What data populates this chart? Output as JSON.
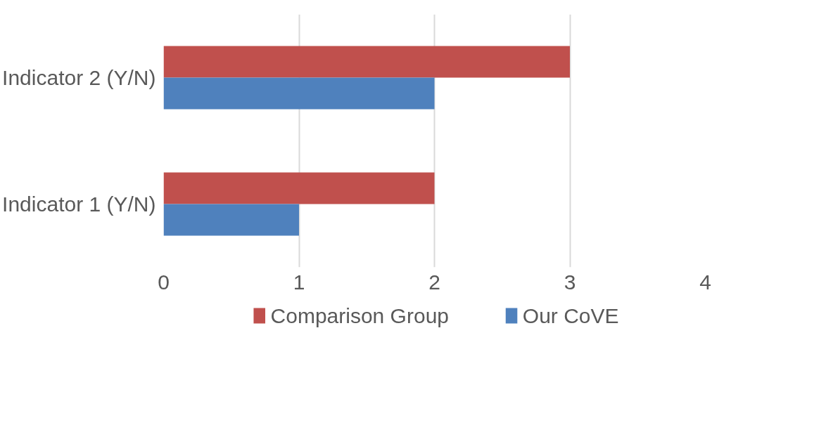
{
  "chart_data": {
    "type": "bar",
    "orientation": "horizontal",
    "categories": [
      "Indicator 2 (Y/N)",
      "Indicator 1 (Y/N)"
    ],
    "series": [
      {
        "name": "Comparison Group",
        "color": "#c0504d",
        "values": [
          3,
          2
        ]
      },
      {
        "name": "Our CoVE",
        "color": "#4f81bd",
        "values": [
          2,
          1
        ]
      }
    ],
    "xlim": [
      0,
      4
    ],
    "xticks": [
      0,
      1,
      2,
      3,
      4
    ],
    "grid": "x",
    "legend": "bottom"
  }
}
